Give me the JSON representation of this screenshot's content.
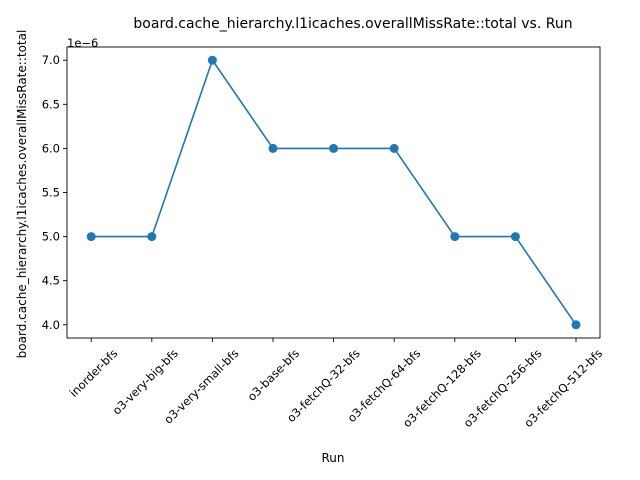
{
  "chart_data": {
    "type": "line",
    "title": "board.cache_hierarchy.l1icaches.overallMissRate::total vs. Run",
    "xlabel": "Run",
    "ylabel": "board.cache_hierarchy.l1icaches.overallMissRate::total",
    "y_offset_label": "1e−6",
    "categories": [
      "inorder-bfs",
      "o3-very-big-bfs",
      "o3-very-small-bfs",
      "o3-base-bfs",
      "o3-fetchQ-32-bfs",
      "o3-fetchQ-64-bfs",
      "o3-fetchQ-128-bfs",
      "o3-fetchQ-256-bfs",
      "o3-fetchQ-512-bfs"
    ],
    "series": [
      {
        "values": [
          5.0,
          5.0,
          7.0,
          6.0,
          6.0,
          6.0,
          5.0,
          5.0,
          4.0
        ],
        "color": "#1f77b4"
      }
    ],
    "y_ticks": [
      "4.0",
      "4.5",
      "5.0",
      "5.5",
      "6.0",
      "6.5",
      "7.0"
    ],
    "ylim": [
      3.85,
      7.15
    ],
    "grid": false,
    "legend": "none"
  }
}
